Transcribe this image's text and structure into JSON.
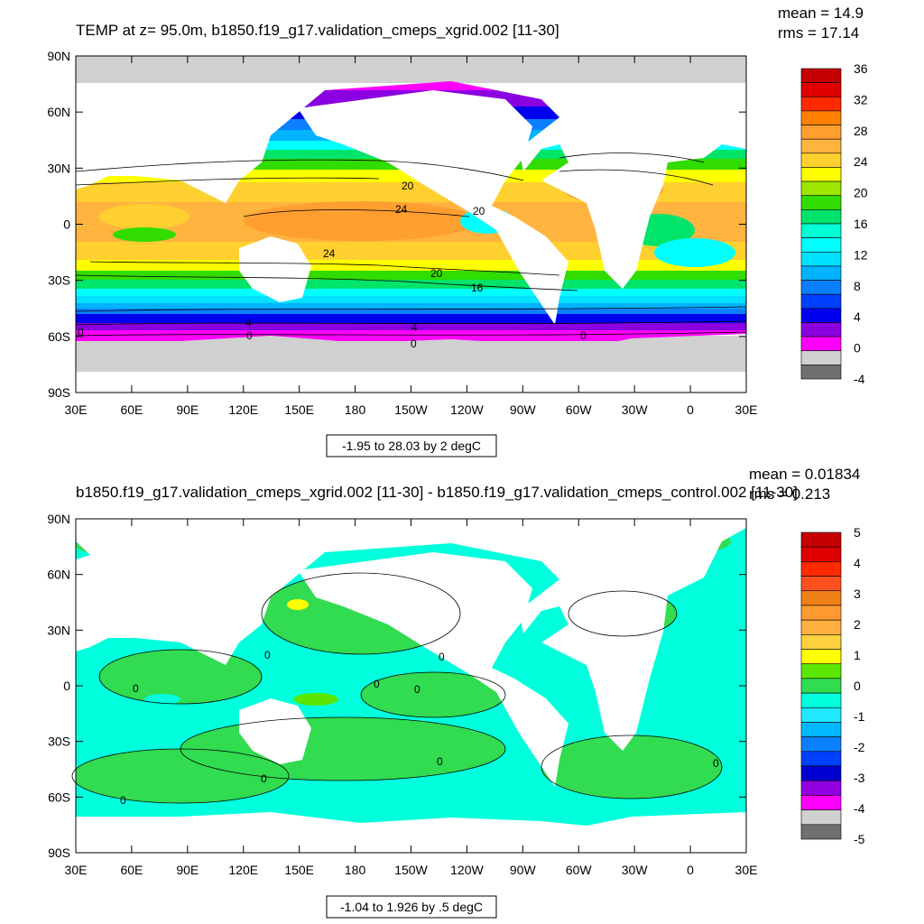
{
  "panels": [
    {
      "title": "TEMP at z=  95.0m, b1850.f19_g17.validation_cmeps_xgrid.002 [11-30]",
      "stats": {
        "mean": "mean = 14.9",
        "rms": "rms = 17.14"
      },
      "range_label": "-1.95 to 28.03 by 2 degC",
      "contour_labels": [
        "20",
        "24",
        "20",
        "24",
        "20",
        "16",
        "4",
        "0",
        "4",
        "0",
        "0",
        "0"
      ],
      "colorbar": {
        "labels": [
          "36",
          "32",
          "28",
          "24",
          "20",
          "16",
          "12",
          "8",
          "4",
          "0",
          "-4"
        ],
        "colors": [
          "#c40000",
          "#e00000",
          "#ff2a00",
          "#ff7f00",
          "#ff9f30",
          "#ffb440",
          "#ffd030",
          "#ffff00",
          "#9ee600",
          "#31dc00",
          "#00e46a",
          "#00ffd4",
          "#00ffff",
          "#00e0ff",
          "#00b2ff",
          "#0a7fff",
          "#0040ff",
          "#0000f0",
          "#8a00e0",
          "#ff00ff",
          "#d0d0d0",
          "#707070"
        ]
      }
    },
    {
      "title": "b1850.f19_g17.validation_cmeps_xgrid.002 [11-30] - b1850.f19_g17.validation_cmeps_control.002 [11-30]",
      "stats": {
        "mean": "mean = 0.01834",
        "rms": "rms = 0.213"
      },
      "range_label": "-1.04 to 1.926 by .5 degC",
      "contour_labels": [
        "0",
        "0",
        "0",
        "0",
        "0",
        "0",
        "0",
        "0",
        "0"
      ],
      "colorbar": {
        "labels": [
          "5",
          "4",
          "3",
          "2",
          "1",
          "0",
          "-1",
          "-2",
          "-3",
          "-4",
          "-5"
        ],
        "colors": [
          "#c40000",
          "#e00000",
          "#ff2a00",
          "#ff5020",
          "#f08018",
          "#ff9a30",
          "#ffb040",
          "#ffd040",
          "#ffff00",
          "#5ae600",
          "#31dc50",
          "#00ffdc",
          "#20e8ff",
          "#00b8ff",
          "#0a7fff",
          "#0040ff",
          "#0000d0",
          "#9000e0",
          "#ff00ff",
          "#d0d0d0",
          "#707070"
        ]
      }
    }
  ],
  "axes": {
    "lat_ticks": [
      "90N",
      "60N",
      "30N",
      "0",
      "30S",
      "60S",
      "90S"
    ],
    "lon_ticks": [
      "30E",
      "60E",
      "90E",
      "120E",
      "150E",
      "180",
      "150W",
      "120W",
      "90W",
      "60W",
      "30W",
      "0",
      "30E"
    ]
  },
  "chart_data": [
    {
      "type": "heatmap",
      "title": "TEMP at z=  95.0m, b1850.f19_g17.validation_cmeps_xgrid.002 [11-30]",
      "variable": "TEMP",
      "units": "degC",
      "xlim": [
        30,
        390
      ],
      "ylim": [
        -90,
        90
      ],
      "min": -1.95,
      "max": 28.03,
      "contour_interval": 2,
      "colorbar_ticks": [
        36,
        32,
        28,
        24,
        20,
        16,
        12,
        8,
        4,
        0,
        -4
      ],
      "mean": 14.9,
      "rms": 17.14
    },
    {
      "type": "heatmap",
      "title": "b1850.f19_g17.validation_cmeps_xgrid.002 [11-30] - b1850.f19_g17.validation_cmeps_control.002 [11-30]",
      "variable": "TEMP difference",
      "units": "degC",
      "xlim": [
        30,
        390
      ],
      "ylim": [
        -90,
        90
      ],
      "min": -1.04,
      "max": 1.926,
      "contour_interval": 0.5,
      "colorbar_ticks": [
        5,
        4,
        3,
        2,
        1,
        0,
        -1,
        -2,
        -3,
        -4,
        -5
      ],
      "mean": 0.01834,
      "rms": 0.213
    }
  ]
}
